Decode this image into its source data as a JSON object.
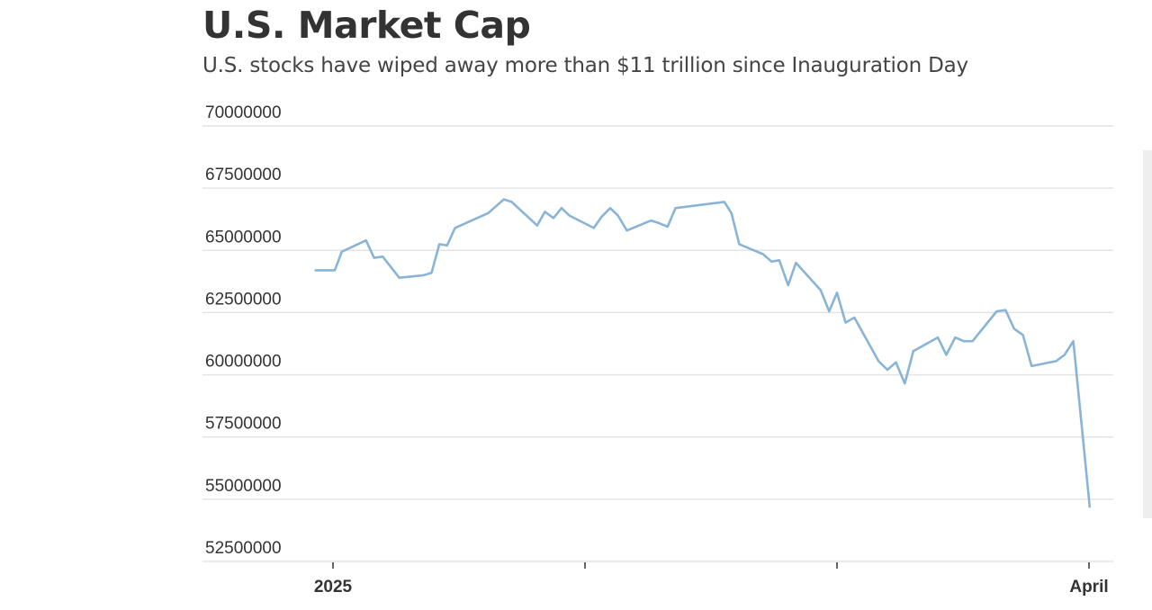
{
  "header": {
    "title": "U.S. Market Cap",
    "subtitle": "U.S. stocks have wiped away more than $11 trillion since Inauguration Day"
  },
  "colors": {
    "line": "#8ab4d6",
    "grid": "#e4e4e4",
    "text": "#333333",
    "background": "#ffffff",
    "scrollbar": "#eeeeee"
  },
  "chart_data": {
    "type": "line",
    "title": "U.S. Market Cap",
    "subtitle": "U.S. stocks have wiped away more than $11 trillion since Inauguration Day",
    "xlabel": "",
    "ylabel": "",
    "ylim": [
      52500000,
      70000000
    ],
    "yticks": [
      70000000,
      67500000,
      65000000,
      62500000,
      60000000,
      57500000,
      55000000,
      52500000
    ],
    "ytick_labels": [
      "70000000",
      "67500000",
      "65000000",
      "62500000",
      "60000000",
      "57500000",
      "55000000",
      "52500000"
    ],
    "xticks": [
      {
        "pos": 0.0,
        "label": "2025"
      },
      {
        "pos": 1.0,
        "label": ""
      },
      {
        "pos": 2.0,
        "label": ""
      },
      {
        "pos": 3.0,
        "label": "April"
      }
    ],
    "xlim": [
      -0.07,
      3.07
    ],
    "grid": true,
    "legend": "none",
    "series": [
      {
        "name": "U.S. Market Cap",
        "x": [
          -0.069,
          0.007,
          0.035,
          0.131,
          0.163,
          0.197,
          0.263,
          0.36,
          0.391,
          0.422,
          0.453,
          0.484,
          0.616,
          0.678,
          0.709,
          0.81,
          0.841,
          0.875,
          0.907,
          0.938,
          1.035,
          1.066,
          1.1,
          1.131,
          1.166,
          1.262,
          1.293,
          1.328,
          1.359,
          1.553,
          1.581,
          1.612,
          1.706,
          1.74,
          1.771,
          1.806,
          1.837,
          1.935,
          1.969,
          2.0,
          2.034,
          2.069,
          2.165,
          2.2,
          2.234,
          2.269,
          2.303,
          2.4,
          2.434,
          2.469,
          2.503,
          2.538,
          2.634,
          2.669,
          2.703,
          2.738,
          2.772,
          2.869,
          2.903,
          2.938,
          3.003
        ],
        "values": [
          64200000,
          64200000,
          64950000,
          65400000,
          64700000,
          64750000,
          63900000,
          64000000,
          64100000,
          65250000,
          65200000,
          65900000,
          66500000,
          67050000,
          66950000,
          66000000,
          66550000,
          66300000,
          66700000,
          66400000,
          65900000,
          66350000,
          66700000,
          66400000,
          65800000,
          66200000,
          66100000,
          65950000,
          66700000,
          66950000,
          66500000,
          65250000,
          64850000,
          64550000,
          64600000,
          63600000,
          64500000,
          63400000,
          62550000,
          63300000,
          62100000,
          62300000,
          60550000,
          60200000,
          60500000,
          59650000,
          60950000,
          61500000,
          60800000,
          61500000,
          61350000,
          61350000,
          62550000,
          62600000,
          61850000,
          61600000,
          60350000,
          60550000,
          60800000,
          61350000,
          54700000
        ]
      }
    ]
  }
}
